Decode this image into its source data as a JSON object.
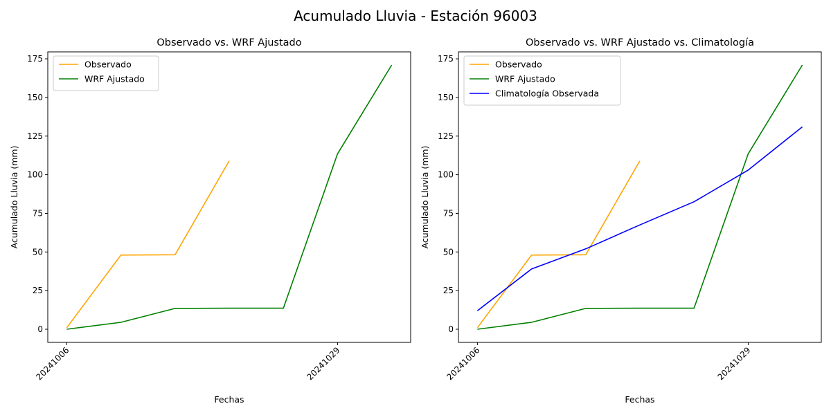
{
  "figure": {
    "suptitle": "Acumulado Lluvia - Estación 96003"
  },
  "chart_data": [
    {
      "type": "line",
      "title": "Observado vs. WRF Ajustado",
      "xlabel": "Fechas",
      "ylabel": "Acumulado Lluvia (mm)",
      "x_tick_labels": [
        {
          "x": 0,
          "label": "20241006"
        },
        {
          "x": 5,
          "label": "20241029"
        }
      ],
      "xlim": [
        -0.35,
        6.35
      ],
      "ylim": [
        -8.5,
        179.5
      ],
      "y_ticks": [
        0,
        25,
        50,
        75,
        100,
        125,
        150,
        175
      ],
      "grid": false,
      "legend_position": "upper-left",
      "series": [
        {
          "name": "Observado",
          "color": "#ffa500",
          "x": [
            0,
            1,
            2,
            3
          ],
          "y": [
            1,
            48,
            48.2,
            109
          ]
        },
        {
          "name": "WRF Ajustado",
          "color": "#008000",
          "x": [
            0,
            1,
            2,
            3,
            4,
            5,
            6
          ],
          "y": [
            0,
            4.5,
            13.5,
            13.6,
            13.6,
            113.5,
            171
          ]
        }
      ]
    },
    {
      "type": "line",
      "title": "Observado vs. WRF Ajustado vs. Climatología",
      "xlabel": "Fechas",
      "ylabel": "Acumulado Lluvia (mm)",
      "x_tick_labels": [
        {
          "x": 0,
          "label": "20241006"
        },
        {
          "x": 5,
          "label": "20241029"
        }
      ],
      "xlim": [
        -0.35,
        6.35
      ],
      "ylim": [
        -8.5,
        179.5
      ],
      "y_ticks": [
        0,
        25,
        50,
        75,
        100,
        125,
        150,
        175
      ],
      "grid": false,
      "legend_position": "upper-left",
      "series": [
        {
          "name": "Observado",
          "color": "#ffa500",
          "x": [
            0,
            1,
            2,
            3
          ],
          "y": [
            1,
            48,
            48.2,
            109
          ]
        },
        {
          "name": "WRF Ajustado",
          "color": "#008000",
          "x": [
            0,
            1,
            2,
            3,
            4,
            5,
            6
          ],
          "y": [
            0,
            4.5,
            13.5,
            13.6,
            13.6,
            113.5,
            171
          ]
        },
        {
          "name": "Climatología Observada",
          "color": "#0000ff",
          "x": [
            0,
            1,
            2,
            3,
            4,
            5,
            6
          ],
          "y": [
            12,
            39,
            52,
            67.5,
            82.5,
            103,
            131
          ]
        }
      ]
    }
  ]
}
